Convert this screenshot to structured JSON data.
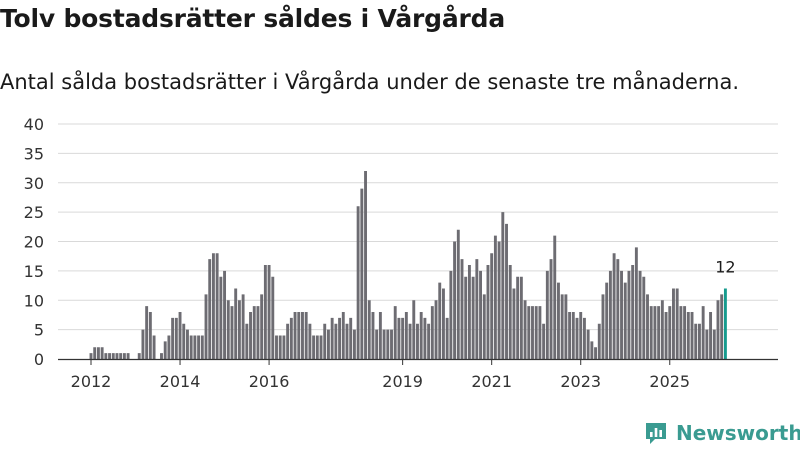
{
  "header": {
    "title": "Tolv bostadsrätter såldes i Vårgårda",
    "subtitle": "Antal sålda bostadsrätter i Vårgårda under de senaste tre månaderna."
  },
  "brand": {
    "name": "Newsworthy",
    "color": "#3a9b91"
  },
  "colors": {
    "bar": "#6d6c72",
    "highlight": "#169b8e",
    "grid": "#d9d9d9",
    "axis": "#333333"
  },
  "chart_data": {
    "type": "bar",
    "title": "Tolv bostadsrätter såldes i Vårgårda",
    "xlabel": "",
    "ylabel": "",
    "ylim": [
      0,
      40
    ],
    "yticks": [
      0,
      5,
      10,
      15,
      20,
      25,
      30,
      35,
      40
    ],
    "xticks": [
      "2012",
      "2014",
      "2016",
      "2019",
      "2021",
      "2023",
      "2025"
    ],
    "start": "2012-01",
    "frequency": "monthly",
    "values": [
      1,
      2,
      2,
      2,
      1,
      1,
      1,
      1,
      1,
      1,
      1,
      0,
      0,
      1,
      5,
      9,
      8,
      4,
      0,
      1,
      3,
      4,
      7,
      7,
      8,
      6,
      5,
      4,
      4,
      4,
      4,
      11,
      17,
      18,
      18,
      14,
      15,
      10,
      9,
      12,
      10,
      11,
      6,
      8,
      9,
      9,
      11,
      16,
      16,
      14,
      4,
      4,
      4,
      6,
      7,
      8,
      8,
      8,
      8,
      6,
      4,
      4,
      4,
      6,
      5,
      7,
      6,
      7,
      8,
      6,
      7,
      5,
      26,
      29,
      32,
      10,
      8,
      5,
      8,
      5,
      5,
      5,
      9,
      7,
      7,
      8,
      6,
      10,
      6,
      8,
      7,
      6,
      9,
      10,
      13,
      12,
      7,
      15,
      20,
      22,
      17,
      14,
      16,
      14,
      17,
      15,
      11,
      16,
      18,
      21,
      20,
      25,
      23,
      16,
      12,
      14,
      14,
      10,
      9,
      9,
      9,
      9,
      6,
      15,
      17,
      21,
      13,
      11,
      11,
      8,
      8,
      7,
      8,
      7,
      5,
      3,
      2,
      6,
      11,
      13,
      15,
      18,
      17,
      15,
      13,
      15,
      16,
      19,
      15,
      14,
      11,
      9,
      9,
      9,
      10,
      8,
      9,
      12,
      12,
      9,
      9,
      8,
      8,
      6,
      6,
      9,
      5,
      8,
      5,
      10,
      11,
      12
    ],
    "highlight_label": "12"
  }
}
